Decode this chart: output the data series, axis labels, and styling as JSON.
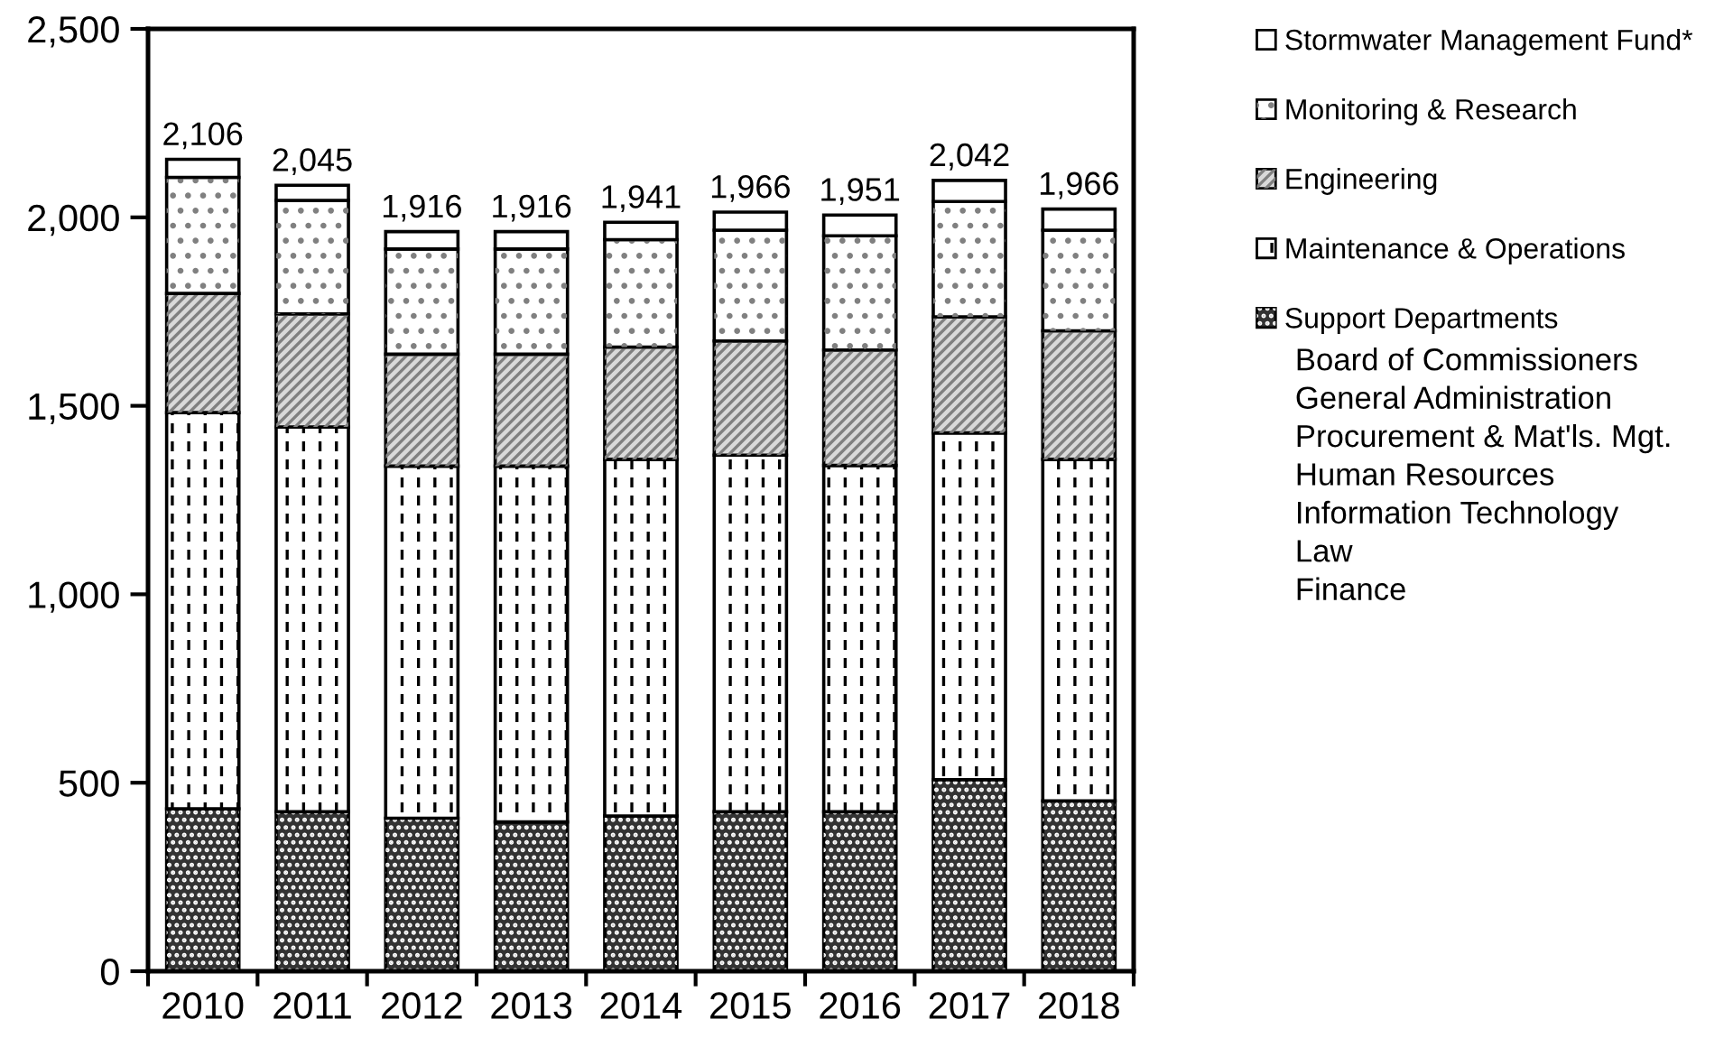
{
  "chart_data": {
    "type": "bar",
    "stacked": true,
    "categories": [
      "2010",
      "2011",
      "2012",
      "2013",
      "2014",
      "2015",
      "2016",
      "2017",
      "2018"
    ],
    "series": [
      {
        "name": "Support Departments",
        "color": "#333333",
        "values": [
          431,
          423,
          406,
          396,
          412,
          423,
          423,
          508,
          452
        ]
      },
      {
        "name": "Maintenance & Operations",
        "color": "#ffffff",
        "values": [
          1051,
          1021,
          934,
          944,
          946,
          946,
          919,
          920,
          906
        ]
      },
      {
        "name": "Engineering",
        "color": "#d9d9d9",
        "values": [
          316,
          300,
          297,
          297,
          298,
          303,
          306,
          308,
          341
        ]
      },
      {
        "name": "Monitoring & Research",
        "color": "#ffffff",
        "values": [
          308,
          301,
          279,
          279,
          285,
          294,
          303,
          306,
          267
        ]
      },
      {
        "name": "Stormwater Management Fund*",
        "color": "#ffffff",
        "values": [
          48,
          40,
          46,
          46,
          46,
          48,
          55,
          56,
          56
        ]
      }
    ],
    "ylim": [
      0,
      2500
    ],
    "yticks": [
      0,
      500,
      {
        "value": 1000,
        "label": "1,000"
      },
      {
        "value": 1500,
        "label": "1,500"
      },
      {
        "value": 2000,
        "label": "2,000"
      },
      {
        "value": 2500,
        "label": "2,500"
      }
    ],
    "legend": "right",
    "annotations": [
      {
        "text": "2,106",
        "x": "2010",
        "y": 2106
      },
      {
        "text": "2,045",
        "x": "2011",
        "y": 2045
      },
      {
        "text": "1,916",
        "x": "2012",
        "y": 1916
      },
      {
        "text": "1,916",
        "x": "2013",
        "y": 1916
      },
      {
        "text": "1,941",
        "x": "2014",
        "y": 1941
      },
      {
        "text": "1,966",
        "x": "2015",
        "y": 1966
      },
      {
        "text": "1,951",
        "x": "2016",
        "y": 1951
      },
      {
        "text": "2,042",
        "x": "2017",
        "y": 2042
      },
      {
        "text": "1,966",
        "x": "2018",
        "y": 1966
      },
      "Board of Commissioners",
      "General Administration",
      "Procurement & Mat'ls. Mgt.",
      "Human Resources",
      "Information Technology",
      "Law",
      "Finance"
    ]
  }
}
